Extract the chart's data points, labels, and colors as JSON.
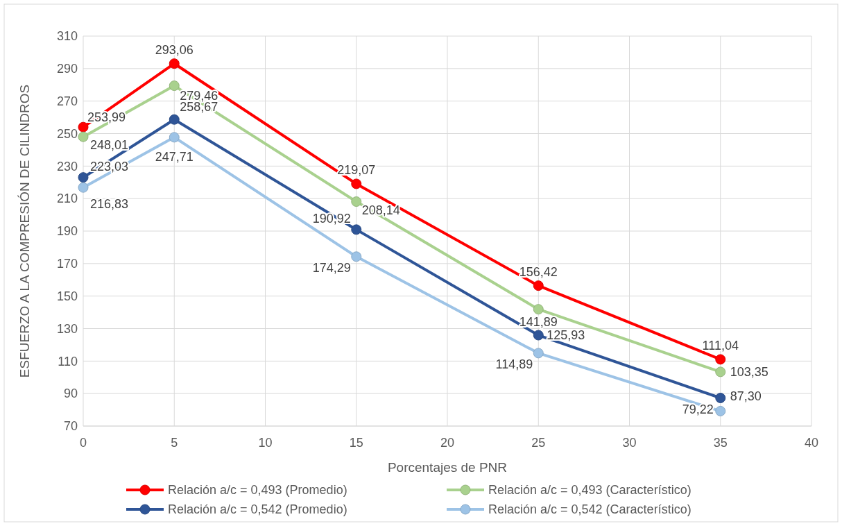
{
  "chart_data": {
    "type": "line",
    "xlabel": "Porcentajes de PNR",
    "ylabel": "ESFUERZO A LA COMPRESIÓN DE CILINDROS",
    "x": [
      0,
      5,
      15,
      25,
      35
    ],
    "series": [
      {
        "name": "Relación a/c = 0,493 (Promedio)",
        "color": "#ff0000",
        "values": [
          253.99,
          293.06,
          219.07,
          156.42,
          111.04
        ],
        "value_labels": [
          "253,99",
          "293,06",
          "219,07",
          "156,42",
          "111,04"
        ]
      },
      {
        "name": "Relación a/c = 0,493 (Característico)",
        "color": "#a9d18e",
        "values": [
          248.01,
          279.46,
          208.14,
          141.89,
          103.35
        ],
        "value_labels": [
          "248,01",
          "279,46",
          "208,14",
          "141,89",
          "103,35"
        ]
      },
      {
        "name": "Relación a/c = 0,542 (Promedio)",
        "color": "#2f5597",
        "values": [
          223.03,
          258.67,
          190.92,
          125.93,
          87.3
        ],
        "value_labels": [
          "223,03",
          "258,67",
          "190,92",
          "125,93",
          "87,30"
        ]
      },
      {
        "name": "Relación a/c = 0,542 (Característico)",
        "color": "#9dc3e6",
        "values": [
          216.83,
          247.71,
          174.29,
          114.89,
          79.22
        ],
        "value_labels": [
          "216,83",
          "247,71",
          "174,29",
          "114,89",
          "79,22"
        ]
      }
    ],
    "xlim": [
      0,
      40
    ],
    "xticks": [
      0,
      5,
      10,
      15,
      20,
      25,
      30,
      35,
      40
    ],
    "ylim": [
      70,
      310
    ],
    "yticks": [
      70,
      90,
      110,
      130,
      150,
      170,
      190,
      210,
      230,
      250,
      270,
      290,
      310
    ],
    "grid": true,
    "legend": "bottom",
    "marker": "circle",
    "line_style": "solid"
  }
}
